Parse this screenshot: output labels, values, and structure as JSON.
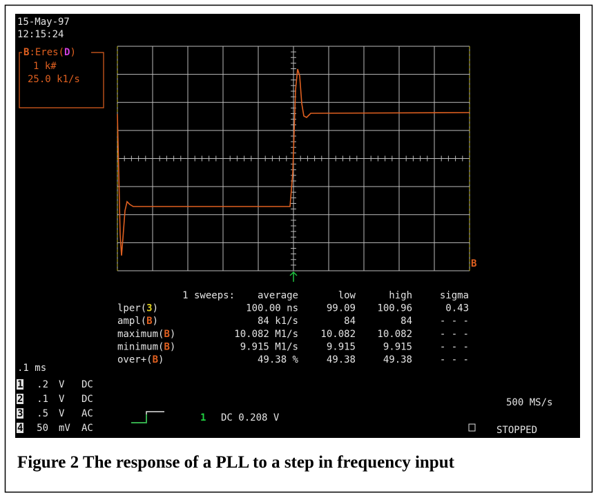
{
  "header": {
    "date": "15-May-97",
    "time": "12:15:24"
  },
  "trace_box": {
    "source": "B",
    "function": ":Eres(",
    "input": "D",
    "close": ")",
    "lines": [
      "1 k#",
      "25.0 k1/s"
    ]
  },
  "table": {
    "header": [
      "1 sweeps:",
      "average",
      "low",
      "high",
      "sigma"
    ],
    "rows": [
      {
        "name": "lper(",
        "tag": "3",
        "end": ")",
        "cells": [
          "100.00 ns",
          "99.09",
          "100.96",
          "0.43"
        ]
      },
      {
        "name": "ampl(",
        "tag": "B",
        "end": ")",
        "cells": [
          "84 k1/s",
          "84",
          "84",
          "- - -"
        ]
      },
      {
        "name": "maximum(",
        "tag": "B",
        "end": ")",
        "cells": [
          "10.082 M1/s",
          "10.082",
          "10.082",
          "- - -"
        ]
      },
      {
        "name": "minimum(",
        "tag": "B",
        "end": ")",
        "cells": [
          "9.915 M1/s",
          "9.915",
          "9.915",
          "- - -"
        ]
      },
      {
        "name": "over+(",
        "tag": "B",
        "end": ")",
        "cells": [
          "49.38 %",
          "49.38",
          "49.38",
          "- - -"
        ]
      }
    ]
  },
  "timebase": ".1 ms",
  "channels": [
    {
      "num": "1",
      "scale": ".2",
      "unit": "V",
      "coupling": "DC"
    },
    {
      "num": "2",
      "scale": ".1",
      "unit": "V",
      "coupling": "DC"
    },
    {
      "num": "3",
      "scale": ".5",
      "unit": "V",
      "coupling": "AC"
    },
    {
      "num": "4",
      "scale": "50",
      "unit": "mV",
      "coupling": "AC"
    }
  ],
  "trigger": {
    "channel": "1",
    "level": "DC 0.208 V"
  },
  "marker": "B",
  "sample_rate": "500 MS/s",
  "status": "STOPPED",
  "caption": "Figure 2 The response of a PLL to a step in frequency input"
}
